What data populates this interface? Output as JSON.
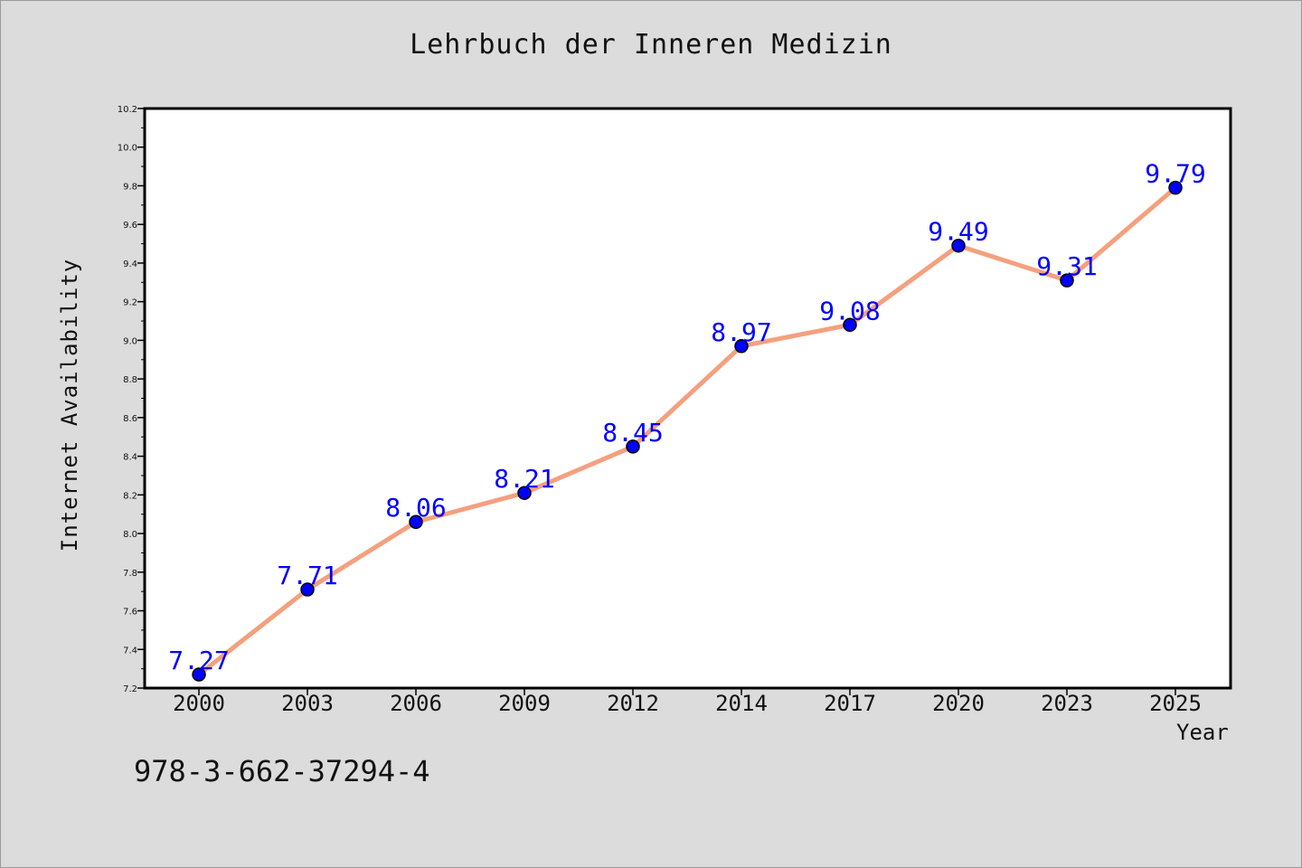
{
  "chart_data": {
    "type": "line",
    "title": "Lehrbuch der Inneren Medizin",
    "xlabel": "Year",
    "ylabel": "Internet Availability",
    "categories": [
      "2000",
      "2003",
      "2006",
      "2009",
      "2012",
      "2014",
      "2017",
      "2020",
      "2023",
      "2025"
    ],
    "values": [
      7.27,
      7.71,
      8.06,
      8.21,
      8.45,
      8.97,
      9.08,
      9.49,
      9.31,
      9.79
    ],
    "data_labels": [
      "7.27",
      "7.71",
      "8.06",
      "8.21",
      "8.45",
      "8.97",
      "9.08",
      "9.49",
      "9.31",
      "9.79"
    ],
    "ylim": [
      7.2,
      10.2
    ],
    "yticks": [
      "7.2",
      "7.4",
      "7.6",
      "7.8",
      "8.0",
      "8.2",
      "8.4",
      "8.6",
      "8.8",
      "9.0",
      "9.2",
      "9.4",
      "9.6",
      "9.8",
      "10.0",
      "10.2"
    ],
    "grid": false,
    "legend": "none",
    "colors": {
      "line": "#f4a07e",
      "marker": "#0000ff",
      "marker_edge": "#000000",
      "data_label": "#0000ff",
      "plot_background": "#ffffff",
      "figure_background": "#dcdcdc"
    }
  },
  "footnote": "978-3-662-37294-4"
}
